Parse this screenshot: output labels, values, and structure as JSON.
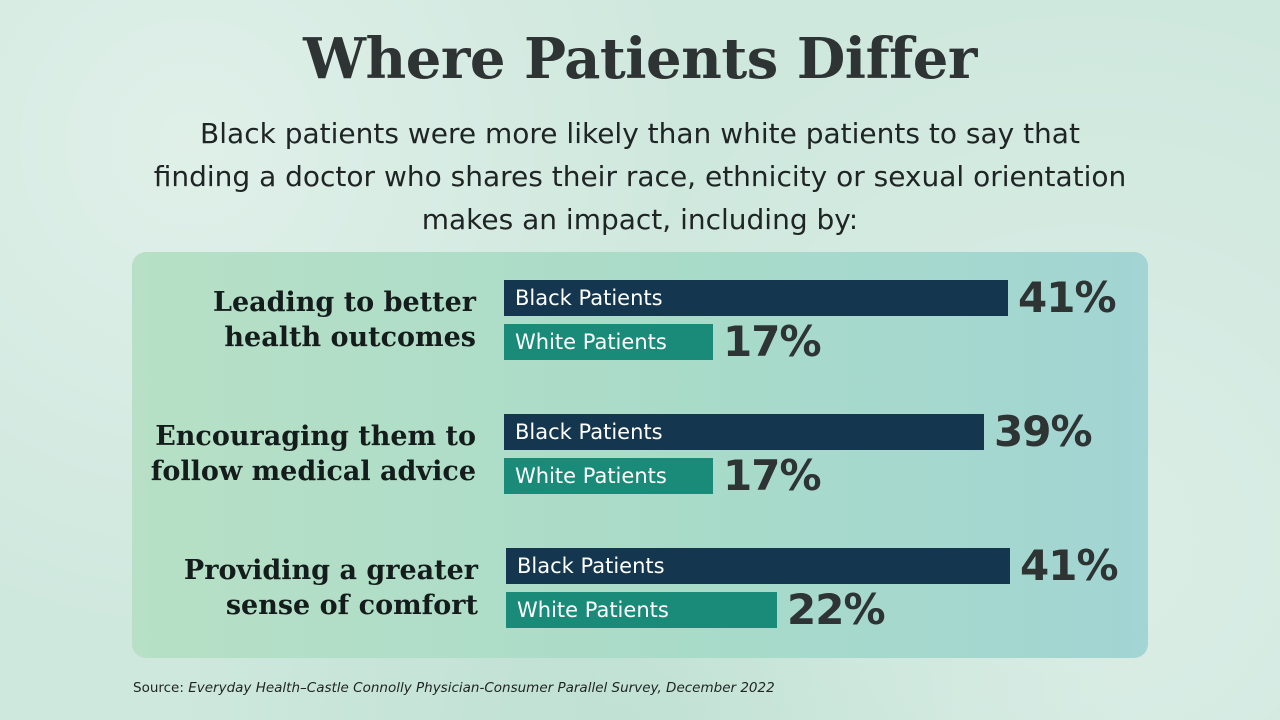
{
  "header": {
    "title": "Where Patients Differ",
    "subtitle_lines": [
      "Black patients were more likely than white patients to say that",
      "finding a doctor who shares their race, ethnicity or sexual orientation",
      "makes an impact, including by:"
    ]
  },
  "colors": {
    "black_patients": "#15364f",
    "white_patients": "#1a8b78",
    "panel": "#aadbc9"
  },
  "chart_data": {
    "type": "bar",
    "orientation": "horizontal",
    "categories": [
      [
        "Leading to better",
        "health outcomes"
      ],
      [
        "Encouraging them to",
        "follow medical advice"
      ],
      [
        "Providing a greater",
        "sense of comfort"
      ]
    ],
    "series": [
      {
        "name": "Black Patients",
        "values": [
          41,
          39,
          41
        ],
        "value_labels": [
          "41%",
          "39%",
          "41%"
        ]
      },
      {
        "name": "White Patients",
        "values": [
          17,
          17,
          22
        ],
        "value_labels": [
          "17%",
          "17%",
          "22%"
        ]
      }
    ],
    "unit": "%"
  },
  "source": {
    "prefix": "Source: ",
    "text": "Everyday Health–Castle Connolly Physician-Consumer Parallel Survey, December 2022"
  }
}
